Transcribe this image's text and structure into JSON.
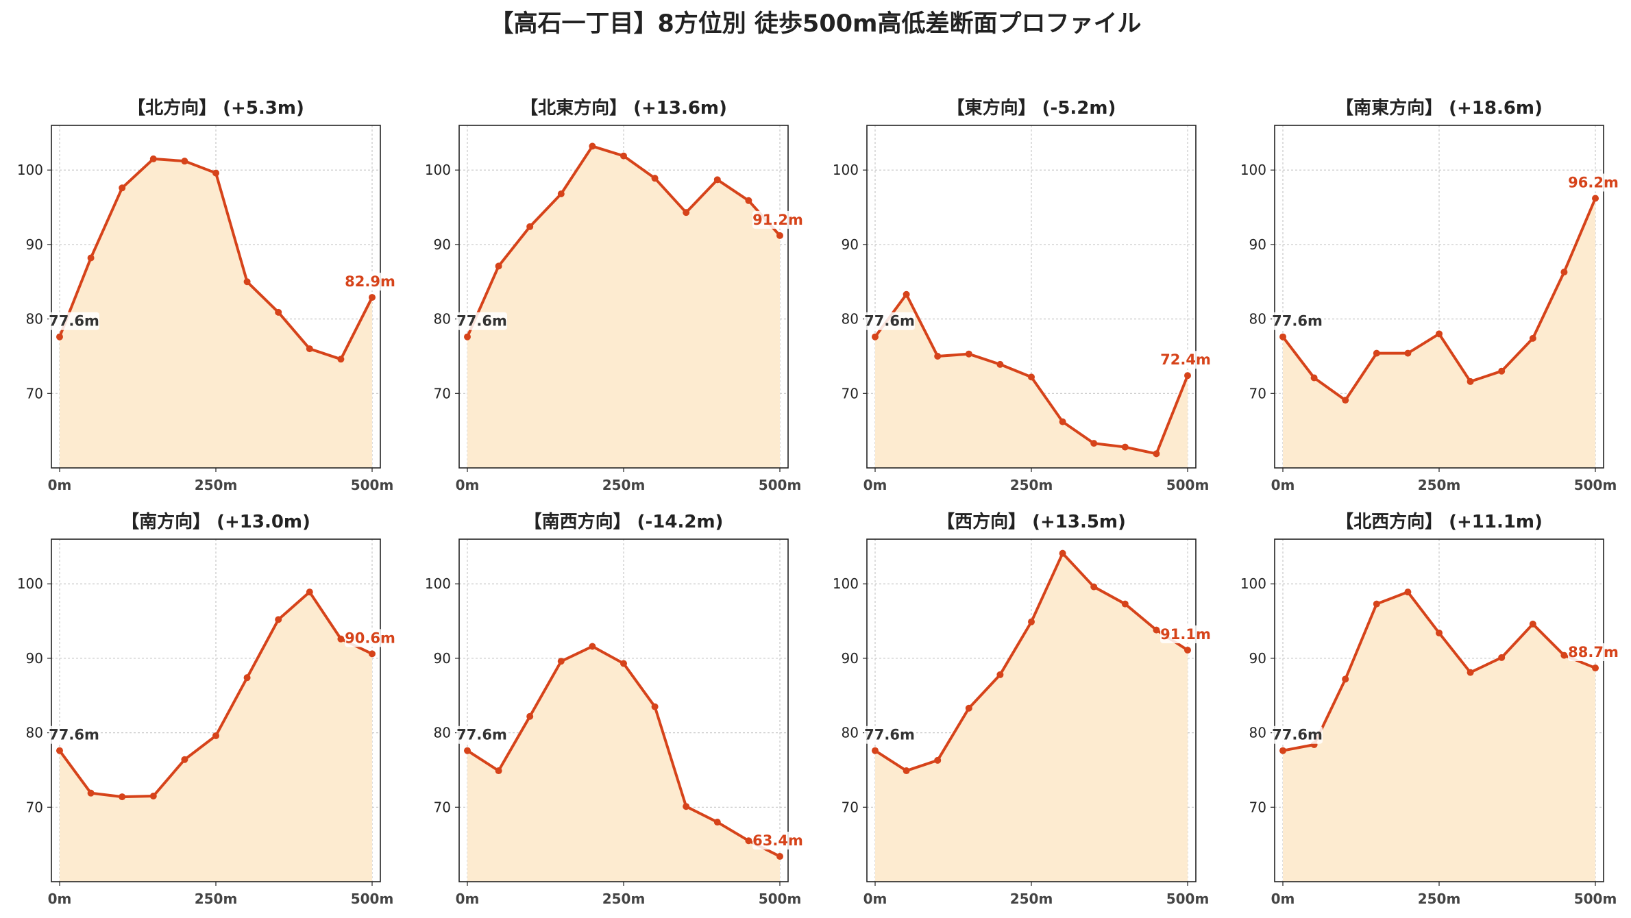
{
  "title": "【高石一丁目】8方位別 徒歩500m高低差断面プロファイル",
  "colors": {
    "line": "#d6431a",
    "fill": "#fdebd0",
    "grid": "#c8c8c8",
    "start_label": "#333333",
    "end_label": "#d6431a"
  },
  "chart_data": [
    {
      "type": "area",
      "title": "【北方向】 (+5.3m)",
      "x": [
        0,
        50,
        100,
        150,
        200,
        250,
        300,
        350,
        400,
        450,
        500
      ],
      "values": [
        77.6,
        88.2,
        97.6,
        101.5,
        101.2,
        99.6,
        85.0,
        80.9,
        76.0,
        74.6,
        82.9
      ],
      "xticks": [
        "0m",
        "250m",
        "500m"
      ],
      "yticks": [
        "70",
        "80",
        "90",
        "100"
      ],
      "ylim": [
        60,
        106
      ],
      "start_label": "77.6m",
      "end_label": "82.9m",
      "grid": true
    },
    {
      "type": "area",
      "title": "【北東方向】 (+13.6m)",
      "x": [
        0,
        50,
        100,
        150,
        200,
        250,
        300,
        350,
        400,
        450,
        500
      ],
      "values": [
        77.6,
        87.1,
        92.4,
        96.8,
        103.2,
        101.9,
        98.9,
        94.3,
        98.7,
        95.9,
        91.2
      ],
      "xticks": [
        "0m",
        "250m",
        "500m"
      ],
      "yticks": [
        "70",
        "80",
        "90",
        "100"
      ],
      "ylim": [
        60,
        106
      ],
      "start_label": "77.6m",
      "end_label": "91.2m",
      "grid": true
    },
    {
      "type": "area",
      "title": "【東方向】 (-5.2m)",
      "x": [
        0,
        50,
        100,
        150,
        200,
        250,
        300,
        350,
        400,
        450,
        500
      ],
      "values": [
        77.6,
        83.3,
        75.0,
        75.3,
        73.9,
        72.2,
        66.2,
        63.3,
        62.8,
        61.9,
        72.4
      ],
      "xticks": [
        "0m",
        "250m",
        "500m"
      ],
      "yticks": [
        "70",
        "80",
        "90",
        "100"
      ],
      "ylim": [
        60,
        106
      ],
      "start_label": "77.6m",
      "end_label": "72.4m",
      "grid": true
    },
    {
      "type": "area",
      "title": "【南東方向】 (+18.6m)",
      "x": [
        0,
        50,
        100,
        150,
        200,
        250,
        300,
        350,
        400,
        450,
        500
      ],
      "values": [
        77.6,
        72.1,
        69.1,
        75.4,
        75.4,
        78.0,
        71.6,
        73.0,
        77.4,
        86.3,
        96.2
      ],
      "xticks": [
        "0m",
        "250m",
        "500m"
      ],
      "yticks": [
        "70",
        "80",
        "90",
        "100"
      ],
      "ylim": [
        60,
        106
      ],
      "start_label": "77.6m",
      "end_label": "96.2m",
      "grid": true
    },
    {
      "type": "area",
      "title": "【南方向】 (+13.0m)",
      "x": [
        0,
        50,
        100,
        150,
        200,
        250,
        300,
        350,
        400,
        450,
        500
      ],
      "values": [
        77.6,
        71.9,
        71.4,
        71.5,
        76.4,
        79.6,
        87.4,
        95.2,
        98.9,
        92.6,
        90.6
      ],
      "xticks": [
        "0m",
        "250m",
        "500m"
      ],
      "yticks": [
        "70",
        "80",
        "90",
        "100"
      ],
      "ylim": [
        60,
        106
      ],
      "start_label": "77.6m",
      "end_label": "90.6m",
      "grid": true
    },
    {
      "type": "area",
      "title": "【南西方向】 (-14.2m)",
      "x": [
        0,
        50,
        100,
        150,
        200,
        250,
        300,
        350,
        400,
        450,
        500
      ],
      "values": [
        77.6,
        74.9,
        82.2,
        89.6,
        91.6,
        89.3,
        83.5,
        70.1,
        68.0,
        65.5,
        63.4
      ],
      "xticks": [
        "0m",
        "250m",
        "500m"
      ],
      "yticks": [
        "70",
        "80",
        "90",
        "100"
      ],
      "ylim": [
        60,
        106
      ],
      "start_label": "77.6m",
      "end_label": "63.4m",
      "grid": true
    },
    {
      "type": "area",
      "title": "【西方向】 (+13.5m)",
      "x": [
        0,
        50,
        100,
        150,
        200,
        250,
        300,
        350,
        400,
        450,
        500
      ],
      "values": [
        77.6,
        74.9,
        76.3,
        83.3,
        87.8,
        94.9,
        104.1,
        99.6,
        97.3,
        93.8,
        91.1
      ],
      "xticks": [
        "0m",
        "250m",
        "500m"
      ],
      "yticks": [
        "70",
        "80",
        "90",
        "100"
      ],
      "ylim": [
        60,
        106
      ],
      "start_label": "77.6m",
      "end_label": "91.1m",
      "grid": true
    },
    {
      "type": "area",
      "title": "【北西方向】 (+11.1m)",
      "x": [
        0,
        50,
        100,
        150,
        200,
        250,
        300,
        350,
        400,
        450,
        500
      ],
      "values": [
        77.6,
        78.4,
        87.2,
        97.3,
        98.9,
        93.4,
        88.1,
        90.1,
        94.6,
        90.4,
        88.7
      ],
      "xticks": [
        "0m",
        "250m",
        "500m"
      ],
      "yticks": [
        "70",
        "80",
        "90",
        "100"
      ],
      "ylim": [
        60,
        106
      ],
      "start_label": "77.6m",
      "end_label": "88.7m",
      "grid": true
    }
  ]
}
